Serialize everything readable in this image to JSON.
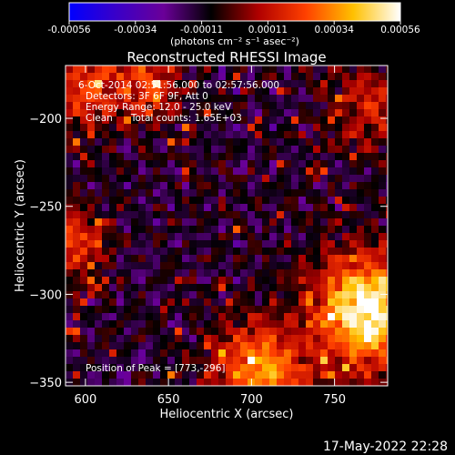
{
  "chart_data": {
    "type": "heatmap",
    "title": "Reconstructed RHESSI Image",
    "xlabel": "Heliocentric X (arcsec)",
    "ylabel": "Heliocentric Y (arcsec)",
    "xlim": [
      588,
      782
    ],
    "ylim": [
      -352,
      -170
    ],
    "xticks": [
      600,
      650,
      700,
      750
    ],
    "yticks": [
      -200,
      -250,
      -300,
      -350
    ],
    "colorbar": {
      "range": [
        -0.00056,
        0.00056
      ],
      "ticks": [
        "-0.00056",
        "-0.00034",
        "-0.00011",
        "0.00011",
        "0.00034",
        "0.00056"
      ],
      "units_label": "(photons cm⁻² s⁻¹ asec⁻²)",
      "stops": [
        "#0000ff",
        "#3a00c8",
        "#6a0098",
        "#000000",
        "#b00000",
        "#ff4000",
        "#ffc000",
        "#ffffff"
      ]
    },
    "annotations": {
      "time_range": "6-Oct-2014 02:51:56.000 to 02:57:56.000",
      "detectors": "Detectors: 3F 6F 9F, Att 0",
      "energy_range": "Energy Range: 12.0 - 25.0 keV",
      "method_counts": "Clean      Total counts: 1.65E+03",
      "peak": "Position of Peak = [773,-296]"
    },
    "peak": {
      "x": 773,
      "y": -296
    },
    "sources": [
      {
        "x": 770,
        "y": -310,
        "intensity": 0.00056,
        "sigma": 22
      },
      {
        "x": 705,
        "y": -345,
        "intensity": 0.00034,
        "sigma": 20
      },
      {
        "x": 592,
        "y": -270,
        "intensity": 0.00022,
        "sigma": 14
      },
      {
        "x": 600,
        "y": -180,
        "intensity": 0.00018,
        "sigma": 18
      },
      {
        "x": 640,
        "y": -180,
        "intensity": 0.00015,
        "sigma": 14
      },
      {
        "x": 770,
        "y": -195,
        "intensity": 0.00015,
        "sigma": 16
      }
    ],
    "background": -0.00011
  },
  "footer_date": "17-May-2022 22:28"
}
